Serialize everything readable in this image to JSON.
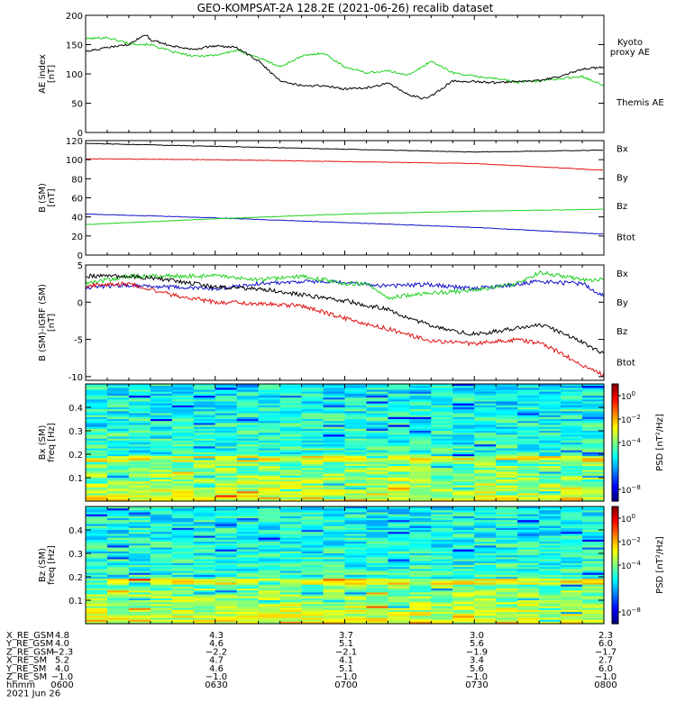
{
  "title": "GEO-KOMPSAT-2A 128.2E (2021-06-26) recalib dataset",
  "colors": {
    "black": "#000000",
    "green": "#1fd11f",
    "red": "#e01010",
    "blue": "#1010c8"
  },
  "colorbar_label": "PSD [nT²/Hz]",
  "chart_data": [
    {
      "type": "line",
      "ylabel": "AE index [nT]",
      "ylabel_lines": [
        "AE index",
        "[nT]"
      ],
      "ylim": [
        0,
        200
      ],
      "yticks": [
        0,
        50,
        100,
        150,
        200
      ],
      "xlim_minutes": [
        0,
        120
      ],
      "series": [
        {
          "name": "Kyoto proxy AE",
          "color": "#1fd11f",
          "x": [
            0,
            5,
            10,
            15,
            20,
            25,
            30,
            35,
            40,
            45,
            50,
            55,
            60,
            65,
            70,
            75,
            80,
            85,
            90,
            95,
            100,
            105,
            110,
            115,
            120
          ],
          "y": [
            160,
            162,
            152,
            150,
            138,
            130,
            132,
            140,
            128,
            112,
            130,
            136,
            112,
            102,
            105,
            98,
            122,
            102,
            96,
            92,
            86,
            88,
            92,
            96,
            80
          ]
        },
        {
          "name": "Themis AE",
          "color": "#000000",
          "x": [
            0,
            5,
            10,
            14,
            15,
            20,
            25,
            30,
            35,
            40,
            45,
            50,
            55,
            60,
            65,
            70,
            72,
            75,
            78,
            80,
            85,
            90,
            95,
            100,
            105,
            110,
            115,
            120
          ],
          "y": [
            138,
            145,
            150,
            168,
            158,
            148,
            142,
            148,
            145,
            122,
            88,
            80,
            80,
            74,
            76,
            84,
            76,
            64,
            58,
            62,
            88,
            87,
            85,
            88,
            88,
            96,
            108,
            112
          ]
        }
      ],
      "legend": [
        {
          "text": "Kyoto",
          "color": "#1fd11f"
        },
        {
          "text": "proxy AE",
          "color": "#1fd11f"
        },
        {
          "text": "Themis AE",
          "color": "#000000"
        }
      ]
    },
    {
      "type": "line",
      "ylabel": "B (SM) [nT]",
      "ylabel_lines": [
        "B (SM)",
        "[nT]"
      ],
      "ylim": [
        0,
        120
      ],
      "yticks": [
        0,
        20,
        40,
        60,
        80,
        100,
        120
      ],
      "xlim_minutes": [
        0,
        120
      ],
      "series": [
        {
          "name": "Bx",
          "color": "#1010c8",
          "x": [
            0,
            30,
            60,
            90,
            120
          ],
          "y": [
            43,
            39,
            34,
            29,
            22
          ]
        },
        {
          "name": "By",
          "color": "#1fd11f",
          "x": [
            0,
            30,
            60,
            90,
            120
          ],
          "y": [
            32,
            38,
            43,
            46,
            48
          ]
        },
        {
          "name": "Bz",
          "color": "#e01010",
          "x": [
            0,
            30,
            60,
            90,
            120
          ],
          "y": [
            101,
            100,
            98,
            96,
            89
          ]
        },
        {
          "name": "Btot",
          "color": "#000000",
          "x": [
            0,
            30,
            60,
            90,
            120
          ],
          "y": [
            117,
            114,
            111,
            108,
            110
          ]
        }
      ],
      "legend": [
        {
          "text": "Bx",
          "color": "#1010c8"
        },
        {
          "text": "By",
          "color": "#1fd11f"
        },
        {
          "text": "Bz",
          "color": "#e01010"
        },
        {
          "text": "Btot",
          "color": "#000000"
        }
      ]
    },
    {
      "type": "line",
      "ylabel": "B (SM)-IGRF (SM) [nT]",
      "ylabel_lines": [
        "B (SM)-IGRF (SM)",
        "[nT]"
      ],
      "ylim": [
        -10.5,
        5
      ],
      "yticks": [
        -10,
        -5,
        0,
        5
      ],
      "xlim_minutes": [
        0,
        120
      ],
      "series": [
        {
          "name": "Bx",
          "color": "#1010c8",
          "x": [
            0,
            10,
            20,
            30,
            40,
            50,
            60,
            70,
            80,
            90,
            100,
            105,
            110,
            115,
            120
          ],
          "y": [
            2,
            2.3,
            2,
            1.8,
            2.5,
            2.8,
            2.6,
            2.2,
            2.4,
            1.8,
            2.4,
            2.8,
            2.6,
            2.5,
            0.8
          ]
        },
        {
          "name": "By",
          "color": "#1fd11f",
          "x": [
            0,
            10,
            20,
            30,
            40,
            50,
            60,
            65,
            70,
            75,
            80,
            90,
            100,
            105,
            110,
            115,
            120
          ],
          "y": [
            2.5,
            3.5,
            3.5,
            3.5,
            3,
            3.5,
            2.5,
            2.5,
            0.5,
            1,
            1.2,
            1.6,
            2.5,
            4,
            3.6,
            3,
            3
          ]
        },
        {
          "name": "Bz",
          "color": "#e01010",
          "x": [
            0,
            10,
            20,
            30,
            40,
            50,
            60,
            70,
            80,
            90,
            100,
            105,
            110,
            115,
            120
          ],
          "y": [
            2.2,
            2.5,
            1,
            0,
            -0.2,
            -0.5,
            -2.2,
            -3.6,
            -5.2,
            -5.6,
            -5,
            -5.5,
            -6.8,
            -8.5,
            -9.8
          ]
        },
        {
          "name": "Btot",
          "color": "#000000",
          "x": [
            0,
            10,
            20,
            30,
            40,
            50,
            60,
            70,
            80,
            85,
            90,
            100,
            105,
            110,
            115,
            120
          ],
          "y": [
            3.5,
            3.5,
            3,
            2,
            1.8,
            1,
            0.2,
            -1,
            -3.2,
            -3.8,
            -4.3,
            -3.5,
            -3,
            -4,
            -5.3,
            -7
          ]
        }
      ],
      "legend": [
        {
          "text": "Bx",
          "color": "#1010c8"
        },
        {
          "text": "By",
          "color": "#1fd11f"
        },
        {
          "text": "Bz",
          "color": "#e01010"
        },
        {
          "text": "Btot",
          "color": "#000000"
        }
      ]
    },
    {
      "type": "heatmap",
      "ylabel_lines": [
        "Bx (SM)",
        "freq [Hz]"
      ],
      "ylim": [
        0,
        0.5
      ],
      "yticks": [
        0.1,
        0.2,
        0.3,
        0.4
      ],
      "colorbar": {
        "scale": "log",
        "range_exp": [
          -9,
          1
        ],
        "tick_exps": [
          0,
          -2,
          -4,
          -8
        ]
      }
    },
    {
      "type": "heatmap",
      "ylabel_lines": [
        "Bz (SM)",
        "freq [Hz]"
      ],
      "ylim": [
        0,
        0.5
      ],
      "yticks": [
        0.1,
        0.2,
        0.3,
        0.4
      ],
      "colorbar": {
        "scale": "log",
        "range_exp": [
          -9,
          1
        ],
        "tick_exps": [
          0,
          -2,
          -4,
          -8
        ]
      }
    }
  ],
  "orbit_table": {
    "rows": [
      {
        "label": "X_RE_GSM",
        "values": [
          "4.8",
          "4.3",
          "3.7",
          "3.0",
          "2.3"
        ]
      },
      {
        "label": "Y_RE_GSM",
        "values": [
          "4.0",
          "4.6",
          "5.1",
          "5.6",
          "6.0"
        ]
      },
      {
        "label": "Z_RE_GSM",
        "values": [
          "−2.3",
          "−2.2",
          "−2.1",
          "−1.9",
          "−1.7"
        ]
      },
      {
        "label": "X_RE_SM",
        "values": [
          "5.2",
          "4.7",
          "4.1",
          "3.4",
          "2.7"
        ]
      },
      {
        "label": "Y_RE_SM",
        "values": [
          "4.0",
          "4.6",
          "5.1",
          "5.6",
          "6.0"
        ]
      },
      {
        "label": "Z_RE_SM",
        "values": [
          "−1.0",
          "−1.0",
          "−1.0",
          "−1.0",
          "−1.0"
        ]
      },
      {
        "label": "hhmm",
        "values": [
          "0600",
          "0630",
          "0700",
          "0730",
          "0800"
        ]
      }
    ],
    "date": "2021 Jun 26"
  }
}
